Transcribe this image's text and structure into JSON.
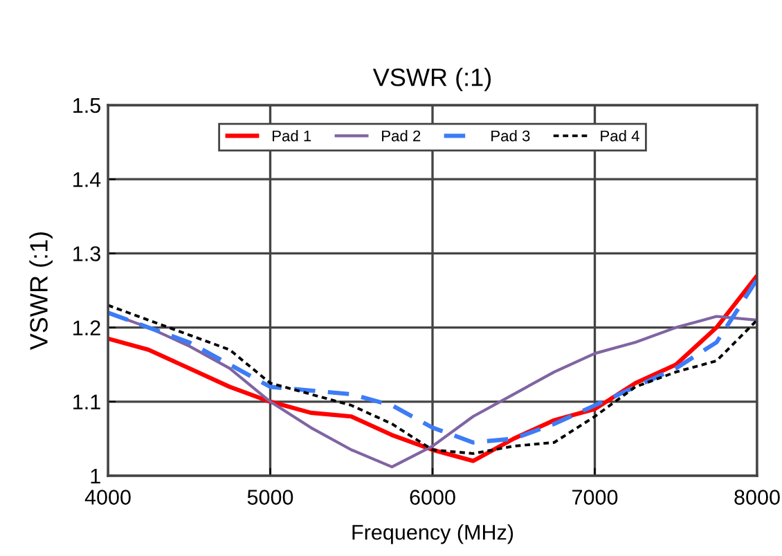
{
  "chart_data": {
    "type": "line",
    "title": "VSWR (:1)",
    "xlabel": "Frequency (MHz)",
    "ylabel": "VSWR (:1)",
    "x": [
      4000,
      4250,
      4500,
      4750,
      5000,
      5250,
      5500,
      5750,
      6000,
      6250,
      6500,
      6750,
      7000,
      7250,
      7500,
      7750,
      8000
    ],
    "series": [
      {
        "name": "Pad 1",
        "color": "#ff0000",
        "line_style": "solid",
        "values": [
          1.185,
          1.17,
          1.145,
          1.12,
          1.1,
          1.085,
          1.08,
          1.055,
          1.035,
          1.02,
          1.05,
          1.075,
          1.09,
          1.125,
          1.15,
          1.2,
          1.27
        ]
      },
      {
        "name": "Pad 2",
        "color": "#8064a2",
        "line_style": "solid",
        "values": [
          1.22,
          1.2,
          1.175,
          1.145,
          1.1,
          1.065,
          1.035,
          1.012,
          1.04,
          1.08,
          1.11,
          1.14,
          1.165,
          1.18,
          1.2,
          1.215,
          1.21
        ]
      },
      {
        "name": "Pad 3",
        "color": "#3d7cf5",
        "line_style": "dashed",
        "values": [
          1.22,
          1.2,
          1.18,
          1.15,
          1.12,
          1.115,
          1.11,
          1.095,
          1.065,
          1.045,
          1.05,
          1.07,
          1.095,
          1.12,
          1.145,
          1.18,
          1.265
        ]
      },
      {
        "name": "Pad 4",
        "color": "#000000",
        "line_style": "dotted",
        "values": [
          1.23,
          1.21,
          1.19,
          1.17,
          1.125,
          1.11,
          1.095,
          1.07,
          1.035,
          1.03,
          1.04,
          1.045,
          1.08,
          1.12,
          1.14,
          1.155,
          1.21
        ]
      }
    ],
    "xlim": [
      4000,
      8000
    ],
    "xticks": [
      4000,
      5000,
      6000,
      7000,
      8000
    ],
    "ylim": [
      1,
      1.5
    ],
    "yticks": [
      1,
      1.1,
      1.2,
      1.3,
      1.4,
      1.5
    ],
    "grid": true,
    "legend": "top",
    "marker": "none"
  }
}
